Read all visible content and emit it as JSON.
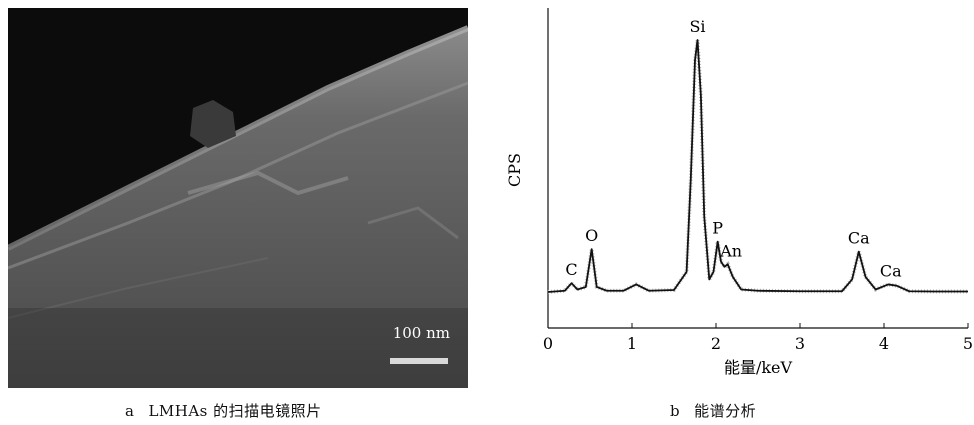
{
  "panel_a": {
    "scale_bar_label": "100 nm"
  },
  "captions": {
    "a_letter": "a",
    "a_text": "LMHAs 的扫描电镜照片",
    "b_letter": "b",
    "b_text": "能谱分析"
  },
  "chart_data": {
    "type": "line",
    "title": "",
    "xlabel": "能量/keV",
    "ylabel": "CPS",
    "xlim": [
      0,
      5
    ],
    "ylim": [
      0,
      100
    ],
    "x_ticks": [
      "0",
      "1",
      "2",
      "3",
      "4",
      "5"
    ],
    "series": [
      {
        "x": [
          0.0,
          0.2,
          0.28,
          0.35,
          0.45,
          0.52,
          0.58,
          0.7,
          0.9,
          1.05,
          1.2,
          1.5,
          1.65,
          1.7,
          1.75,
          1.78,
          1.82,
          1.86,
          1.92,
          1.97,
          2.02,
          2.06,
          2.1,
          2.14,
          2.2,
          2.3,
          2.5,
          3.0,
          3.5,
          3.62,
          3.7,
          3.78,
          3.9,
          4.05,
          4.15,
          4.3,
          4.6,
          5.0
        ],
        "y": [
          0,
          0.5,
          3.5,
          1.0,
          2.0,
          17.0,
          2.0,
          0.5,
          0.5,
          3.0,
          0.5,
          0.8,
          8.0,
          45.0,
          92.0,
          100.0,
          78.0,
          30.0,
          5.0,
          8.0,
          20.0,
          12.0,
          10.0,
          11.0,
          6.0,
          1.0,
          0.5,
          0.3,
          0.3,
          5.0,
          16.0,
          6.0,
          1.0,
          3.0,
          2.5,
          0.3,
          0.2,
          0.2
        ]
      }
    ],
    "annotations": [
      {
        "text": "Si",
        "x": 1.78,
        "y": 100
      },
      {
        "text": "O",
        "x": 0.52,
        "y": 17
      },
      {
        "text": "C",
        "x": 0.28,
        "y": 3.5
      },
      {
        "text": "P",
        "x": 2.02,
        "y": 20
      },
      {
        "text": "An",
        "x": 2.18,
        "y": 11
      },
      {
        "text": "Ca",
        "x": 3.7,
        "y": 16
      },
      {
        "text": "Ca",
        "x": 4.08,
        "y": 3
      }
    ],
    "grid": false,
    "legend": "none"
  }
}
